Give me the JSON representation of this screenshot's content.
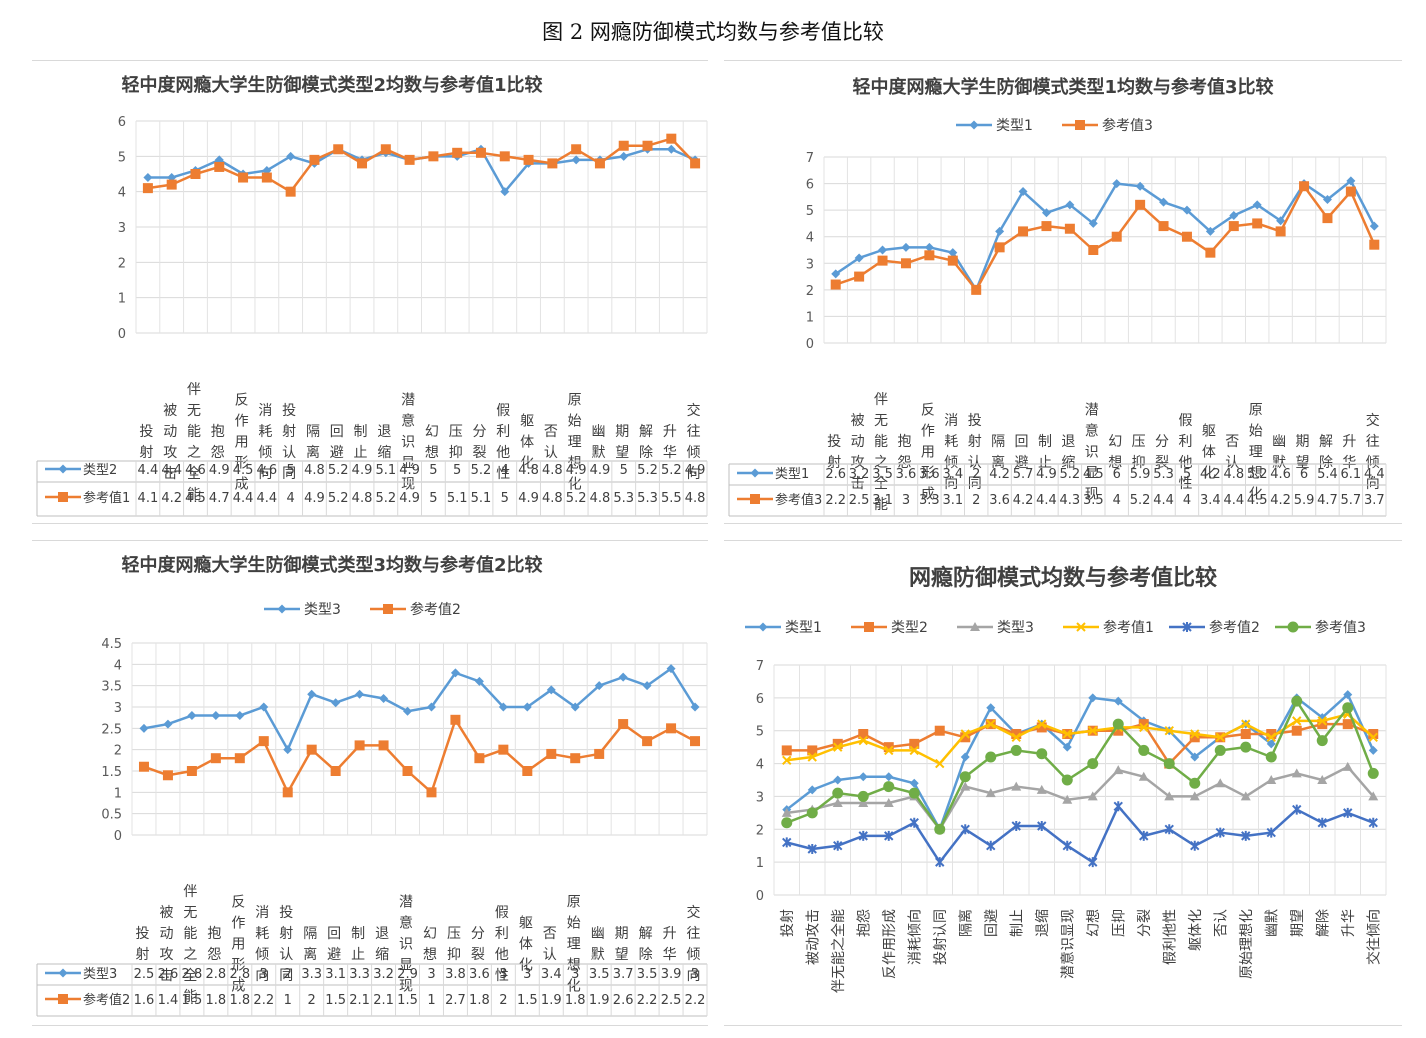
{
  "figure_title": "图 2 网瘾防御模式均数与参考值比较",
  "chart_data": [
    {
      "type": "line",
      "title": "轻中度网瘾大学生防御模式类型2均数与参考值1比较",
      "categories": [
        "投射",
        "被动攻击",
        "伴无能之全能",
        "抱怨",
        "反作用形成",
        "消耗倾向",
        "投射认同",
        "隔离",
        "回避",
        "制止",
        "退缩",
        "潜意识显现",
        "幻想",
        "压抑",
        "分裂",
        "假利他性",
        "躯体化",
        "否认",
        "原始理想化",
        "幽默",
        "期望",
        "解除",
        "升华",
        "交往倾向"
      ],
      "ylim": [
        0,
        6
      ],
      "yticks": [
        "0",
        "1",
        "2",
        "3",
        "4",
        "5",
        "6"
      ],
      "legend": "table",
      "series": [
        {
          "name": "类型2",
          "color": "#5b9bd5",
          "marker": "diamond",
          "values": [
            4.4,
            4.4,
            4.6,
            4.9,
            4.5,
            4.6,
            5,
            4.8,
            5.2,
            4.9,
            5.1,
            4.9,
            5,
            5,
            5.2,
            4,
            4.8,
            4.8,
            4.9,
            4.9,
            5,
            5.2,
            5.2,
            4.9
          ]
        },
        {
          "name": "参考值1",
          "color": "#ed7d31",
          "marker": "square",
          "values": [
            4.1,
            4.2,
            4.5,
            4.7,
            4.4,
            4.4,
            4,
            4.9,
            5.2,
            4.8,
            5.2,
            4.9,
            5,
            5.1,
            5.1,
            5,
            4.9,
            4.8,
            5.2,
            4.8,
            5.3,
            5.3,
            5.5,
            4.8
          ]
        }
      ]
    },
    {
      "type": "line",
      "title": "轻中度网瘾大学生防御模式类型1均数与参考值3比较",
      "categories": [
        "投射",
        "被动攻击",
        "伴无能之全能",
        "抱怨",
        "反作用形成",
        "消耗倾向",
        "投射认同",
        "隔离",
        "回避",
        "制止",
        "退缩",
        "潜意识显现",
        "幻想",
        "压抑",
        "分裂",
        "假利他性",
        "躯体化",
        "否认",
        "原始理想化",
        "幽默",
        "期望",
        "解除",
        "升华",
        "交往倾向"
      ],
      "ylim": [
        0,
        7
      ],
      "yticks": [
        "0",
        "1",
        "2",
        "3",
        "4",
        "5",
        "6",
        "7"
      ],
      "legend": "top",
      "series": [
        {
          "name": "类型1",
          "color": "#5b9bd5",
          "marker": "diamond",
          "values": [
            2.6,
            3.2,
            3.5,
            3.6,
            3.6,
            3.4,
            2,
            4.2,
            5.7,
            4.9,
            5.2,
            4.5,
            6,
            5.9,
            5.3,
            5,
            4.2,
            4.8,
            5.2,
            4.6,
            6,
            5.4,
            6.1,
            4.4
          ]
        },
        {
          "name": "参考值3",
          "color": "#ed7d31",
          "marker": "square",
          "values": [
            2.2,
            2.5,
            3.1,
            3,
            3.3,
            3.1,
            2,
            3.6,
            4.2,
            4.4,
            4.3,
            3.5,
            4,
            5.2,
            4.4,
            4,
            3.4,
            4.4,
            4.5,
            4.2,
            5.9,
            4.7,
            5.7,
            3.7
          ]
        }
      ]
    },
    {
      "type": "line",
      "title": "轻中度网瘾大学生防御模式类型3均数与参考值2比较",
      "categories": [
        "投射",
        "被动攻击",
        "伴无能之全能",
        "抱怨",
        "反作用形成",
        "消耗倾向",
        "投射认同",
        "隔离",
        "回避",
        "制止",
        "退缩",
        "潜意识显现",
        "幻想",
        "压抑",
        "分裂",
        "假利他性",
        "躯体化",
        "否认",
        "原始理想化",
        "幽默",
        "期望",
        "解除",
        "升华",
        "交往倾向"
      ],
      "ylim": [
        0,
        4.5
      ],
      "yticks": [
        "0",
        "0.5",
        "1",
        "1.5",
        "2",
        "2.5",
        "3",
        "3.5",
        "4",
        "4.5"
      ],
      "legend": "top",
      "series": [
        {
          "name": "类型3",
          "color": "#5b9bd5",
          "marker": "diamond",
          "values": [
            2.5,
            2.6,
            2.8,
            2.8,
            2.8,
            3,
            2,
            3.3,
            3.1,
            3.3,
            3.2,
            2.9,
            3,
            3.8,
            3.6,
            3,
            3,
            3.4,
            3,
            3.5,
            3.7,
            3.5,
            3.9,
            3
          ]
        },
        {
          "name": "参考值2",
          "color": "#ed7d31",
          "marker": "square",
          "values": [
            1.6,
            1.4,
            1.5,
            1.8,
            1.8,
            2.2,
            1,
            2,
            1.5,
            2.1,
            2.1,
            1.5,
            1,
            2.7,
            1.8,
            2,
            1.5,
            1.9,
            1.8,
            1.9,
            2.6,
            2.2,
            2.5,
            2.2
          ]
        }
      ]
    },
    {
      "type": "line",
      "title": "网瘾防御模式均数与参考值比较",
      "categories": [
        "投射",
        "被动攻击",
        "伴无能之全能",
        "抱怨",
        "反作用形成",
        "消耗倾向",
        "投射认同",
        "隔离",
        "回避",
        "制止",
        "退缩",
        "潜意识显现",
        "幻想",
        "压抑",
        "分裂",
        "假利他性",
        "躯体化",
        "否认",
        "原始理想化",
        "幽默",
        "期望",
        "解除",
        "升华",
        "交往倾向"
      ],
      "ylim": [
        0,
        7
      ],
      "yticks": [
        "0",
        "1",
        "2",
        "3",
        "4",
        "5",
        "6",
        "7"
      ],
      "legend": "top",
      "series": [
        {
          "name": "类型1",
          "color": "#5b9bd5",
          "marker": "diamond",
          "values": [
            2.6,
            3.2,
            3.5,
            3.6,
            3.6,
            3.4,
            2,
            4.2,
            5.7,
            4.9,
            5.2,
            4.5,
            6,
            5.9,
            5.3,
            5,
            4.2,
            4.8,
            5.2,
            4.6,
            6,
            5.4,
            6.1,
            4.4
          ]
        },
        {
          "name": "类型2",
          "color": "#ed7d31",
          "marker": "square",
          "values": [
            4.4,
            4.4,
            4.6,
            4.9,
            4.5,
            4.6,
            5,
            4.8,
            5.2,
            4.9,
            5.1,
            4.9,
            5,
            5,
            5.2,
            4,
            4.8,
            4.8,
            4.9,
            4.9,
            5,
            5.2,
            5.2,
            4.9
          ]
        },
        {
          "name": "类型3",
          "color": "#a5a5a5",
          "marker": "triangle",
          "values": [
            2.5,
            2.6,
            2.8,
            2.8,
            2.8,
            3,
            2,
            3.3,
            3.1,
            3.3,
            3.2,
            2.9,
            3,
            3.8,
            3.6,
            3,
            3,
            3.4,
            3,
            3.5,
            3.7,
            3.5,
            3.9,
            3
          ]
        },
        {
          "name": "参考值1",
          "color": "#ffc000",
          "marker": "x",
          "values": [
            4.1,
            4.2,
            4.5,
            4.7,
            4.4,
            4.4,
            4,
            4.9,
            5.2,
            4.8,
            5.2,
            4.9,
            5,
            5.1,
            5.1,
            5,
            4.9,
            4.8,
            5.2,
            4.8,
            5.3,
            5.3,
            5.5,
            4.8
          ]
        },
        {
          "name": "参考值2",
          "color": "#4472c4",
          "marker": "star",
          "values": [
            1.6,
            1.4,
            1.5,
            1.8,
            1.8,
            2.2,
            1,
            2,
            1.5,
            2.1,
            2.1,
            1.5,
            1,
            2.7,
            1.8,
            2,
            1.5,
            1.9,
            1.8,
            1.9,
            2.6,
            2.2,
            2.5,
            2.2
          ]
        },
        {
          "name": "参考值3",
          "color": "#70ad47",
          "marker": "circle",
          "values": [
            2.2,
            2.5,
            3.1,
            3,
            3.3,
            3.1,
            2,
            3.6,
            4.2,
            4.4,
            4.3,
            3.5,
            4,
            5.2,
            4.4,
            4,
            3.4,
            4.4,
            4.5,
            4.2,
            5.9,
            4.7,
            5.7,
            3.7
          ]
        }
      ]
    }
  ]
}
